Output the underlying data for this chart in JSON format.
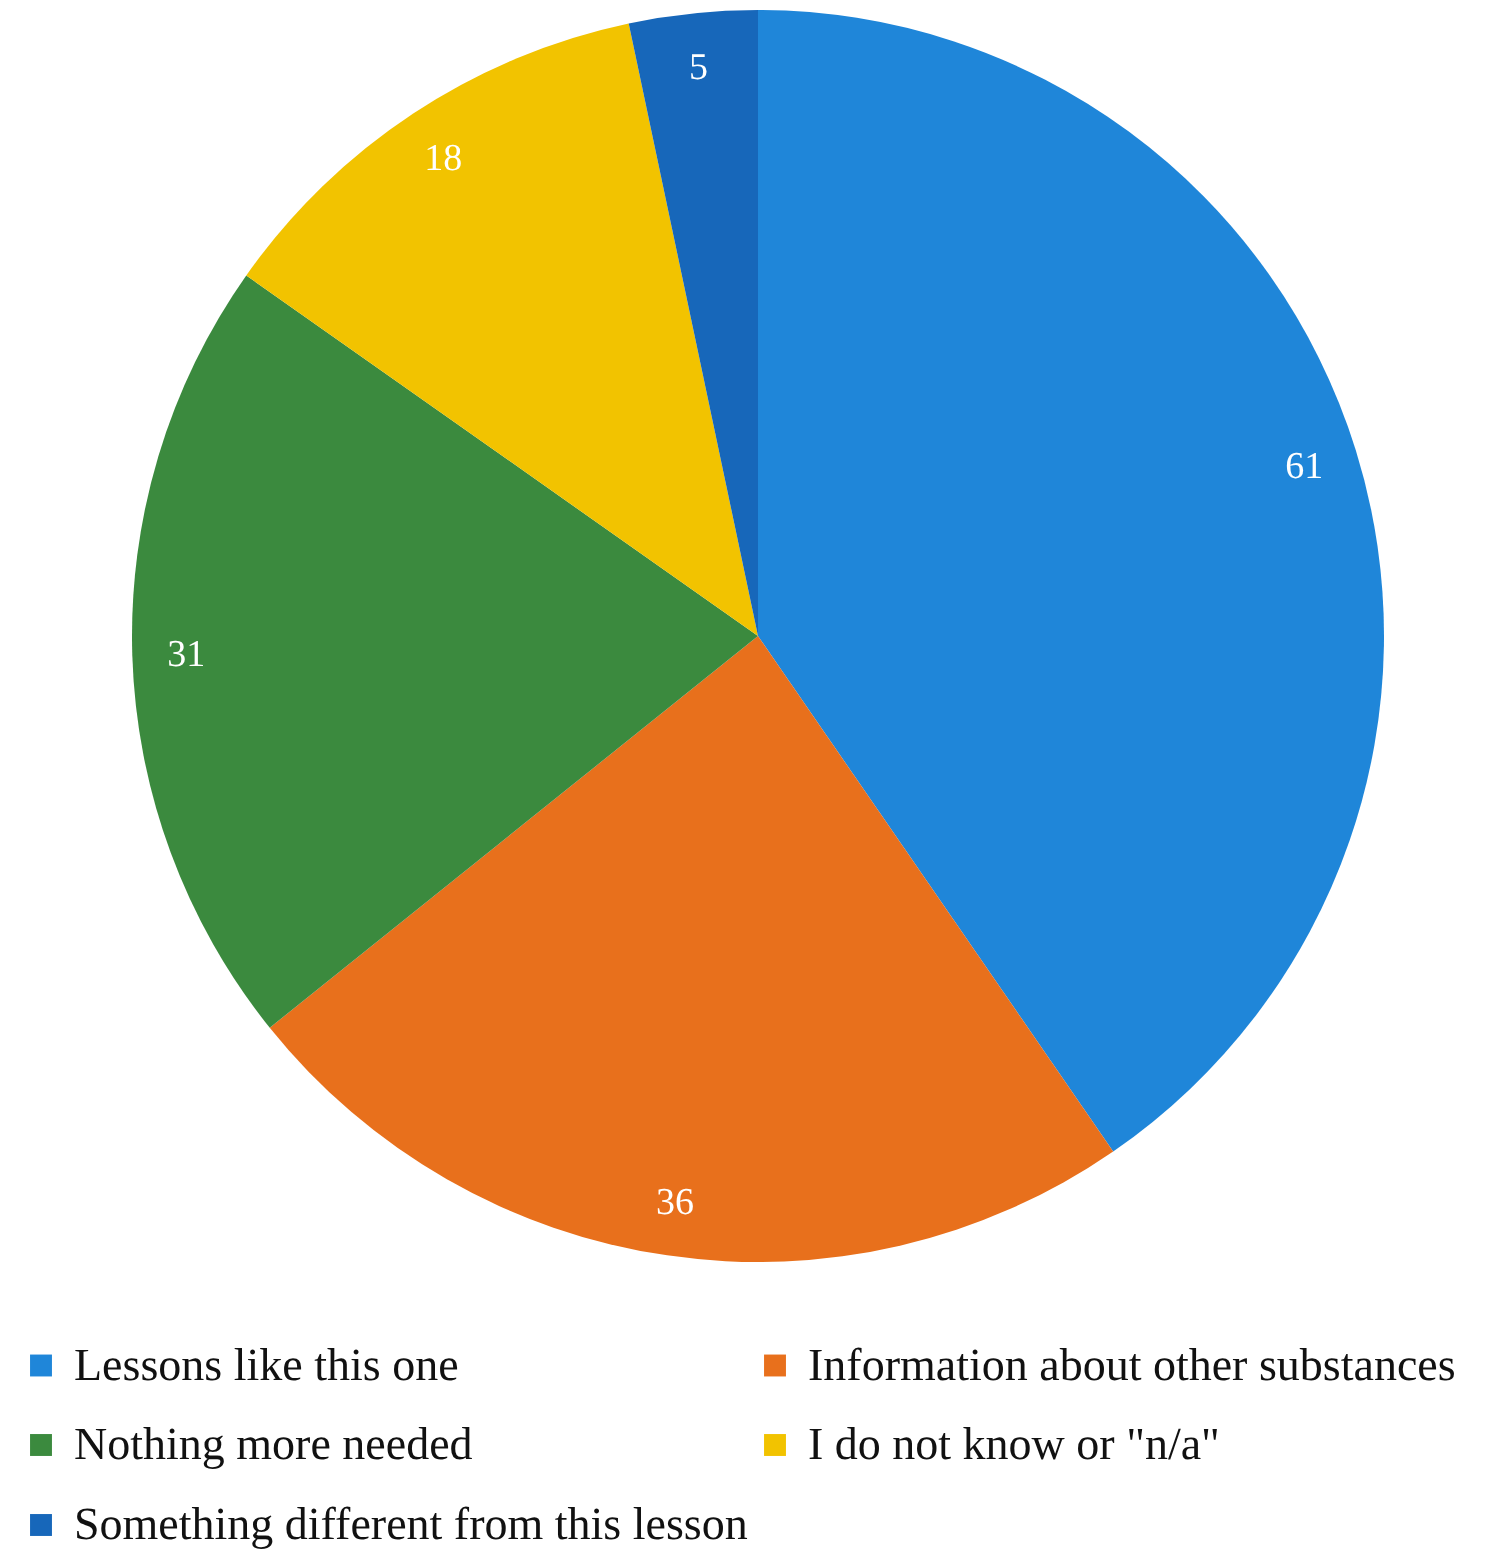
{
  "chart_data": {
    "type": "pie",
    "categories": [
      "Lessons like this one",
      "Information about other substances",
      "Nothing more needed",
      "I do not know or \"n/a\"",
      "Something different from this lesson"
    ],
    "values": [
      61,
      36,
      31,
      18,
      5
    ],
    "colors": [
      "#1f86d9",
      "#e8701c",
      "#3b8a3e",
      "#f2c300",
      "#1767ba"
    ],
    "data_labels": true,
    "legend": "bottom"
  }
}
